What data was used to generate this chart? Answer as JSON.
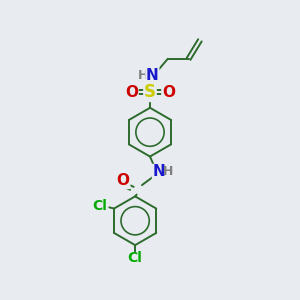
{
  "background_color": "#e8ecf0",
  "bond_color": "#2d6b2d",
  "atom_colors": {
    "N": "#1a1acc",
    "O": "#cc0000",
    "S": "#cccc00",
    "Cl": "#00aa00",
    "H_gray": "#808080",
    "C": "#2d6b2d"
  },
  "figsize": [
    3.0,
    3.0
  ],
  "dpi": 100
}
